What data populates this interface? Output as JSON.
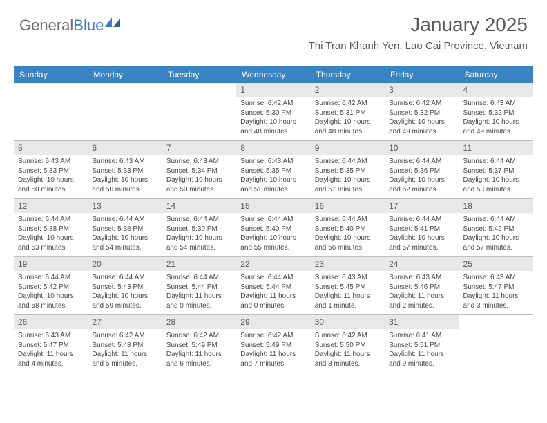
{
  "brand": {
    "part1": "General",
    "part2": "Blue"
  },
  "header": {
    "month": "January 2025",
    "location": "Thi Tran Khanh Yen, Lao Cai Province, Vietnam"
  },
  "colors": {
    "header_bg": "#3a84c4",
    "header_text": "#ffffff",
    "daynum_bg": "#e8e8e8",
    "text": "#4a4a4a",
    "rule": "#bfbfbf",
    "logo_gray": "#6b6b6b",
    "logo_blue": "#3a7fbf"
  },
  "dayNames": [
    "Sunday",
    "Monday",
    "Tuesday",
    "Wednesday",
    "Thursday",
    "Friday",
    "Saturday"
  ],
  "weeks": [
    [
      null,
      null,
      null,
      {
        "n": "1",
        "sr": "6:42 AM",
        "ss": "5:30 PM",
        "dl": "10 hours and 48 minutes."
      },
      {
        "n": "2",
        "sr": "6:42 AM",
        "ss": "5:31 PM",
        "dl": "10 hours and 48 minutes."
      },
      {
        "n": "3",
        "sr": "6:42 AM",
        "ss": "5:32 PM",
        "dl": "10 hours and 49 minutes."
      },
      {
        "n": "4",
        "sr": "6:43 AM",
        "ss": "5:32 PM",
        "dl": "10 hours and 49 minutes."
      }
    ],
    [
      {
        "n": "5",
        "sr": "6:43 AM",
        "ss": "5:33 PM",
        "dl": "10 hours and 50 minutes."
      },
      {
        "n": "6",
        "sr": "6:43 AM",
        "ss": "5:33 PM",
        "dl": "10 hours and 50 minutes."
      },
      {
        "n": "7",
        "sr": "6:43 AM",
        "ss": "5:34 PM",
        "dl": "10 hours and 50 minutes."
      },
      {
        "n": "8",
        "sr": "6:43 AM",
        "ss": "5:35 PM",
        "dl": "10 hours and 51 minutes."
      },
      {
        "n": "9",
        "sr": "6:44 AM",
        "ss": "5:35 PM",
        "dl": "10 hours and 51 minutes."
      },
      {
        "n": "10",
        "sr": "6:44 AM",
        "ss": "5:36 PM",
        "dl": "10 hours and 52 minutes."
      },
      {
        "n": "11",
        "sr": "6:44 AM",
        "ss": "5:37 PM",
        "dl": "10 hours and 53 minutes."
      }
    ],
    [
      {
        "n": "12",
        "sr": "6:44 AM",
        "ss": "5:38 PM",
        "dl": "10 hours and 53 minutes."
      },
      {
        "n": "13",
        "sr": "6:44 AM",
        "ss": "5:38 PM",
        "dl": "10 hours and 54 minutes."
      },
      {
        "n": "14",
        "sr": "6:44 AM",
        "ss": "5:39 PM",
        "dl": "10 hours and 54 minutes."
      },
      {
        "n": "15",
        "sr": "6:44 AM",
        "ss": "5:40 PM",
        "dl": "10 hours and 55 minutes."
      },
      {
        "n": "16",
        "sr": "6:44 AM",
        "ss": "5:40 PM",
        "dl": "10 hours and 56 minutes."
      },
      {
        "n": "17",
        "sr": "6:44 AM",
        "ss": "5:41 PM",
        "dl": "10 hours and 57 minutes."
      },
      {
        "n": "18",
        "sr": "6:44 AM",
        "ss": "5:42 PM",
        "dl": "10 hours and 57 minutes."
      }
    ],
    [
      {
        "n": "19",
        "sr": "6:44 AM",
        "ss": "5:42 PM",
        "dl": "10 hours and 58 minutes."
      },
      {
        "n": "20",
        "sr": "6:44 AM",
        "ss": "5:43 PM",
        "dl": "10 hours and 59 minutes."
      },
      {
        "n": "21",
        "sr": "6:44 AM",
        "ss": "5:44 PM",
        "dl": "11 hours and 0 minutes."
      },
      {
        "n": "22",
        "sr": "6:44 AM",
        "ss": "5:44 PM",
        "dl": "11 hours and 0 minutes."
      },
      {
        "n": "23",
        "sr": "6:43 AM",
        "ss": "5:45 PM",
        "dl": "11 hours and 1 minute."
      },
      {
        "n": "24",
        "sr": "6:43 AM",
        "ss": "5:46 PM",
        "dl": "11 hours and 2 minutes."
      },
      {
        "n": "25",
        "sr": "6:43 AM",
        "ss": "5:47 PM",
        "dl": "11 hours and 3 minutes."
      }
    ],
    [
      {
        "n": "26",
        "sr": "6:43 AM",
        "ss": "5:47 PM",
        "dl": "11 hours and 4 minutes."
      },
      {
        "n": "27",
        "sr": "6:42 AM",
        "ss": "5:48 PM",
        "dl": "11 hours and 5 minutes."
      },
      {
        "n": "28",
        "sr": "6:42 AM",
        "ss": "5:49 PM",
        "dl": "11 hours and 6 minutes."
      },
      {
        "n": "29",
        "sr": "6:42 AM",
        "ss": "5:49 PM",
        "dl": "11 hours and 7 minutes."
      },
      {
        "n": "30",
        "sr": "6:42 AM",
        "ss": "5:50 PM",
        "dl": "11 hours and 8 minutes."
      },
      {
        "n": "31",
        "sr": "6:41 AM",
        "ss": "5:51 PM",
        "dl": "11 hours and 9 minutes."
      },
      null
    ]
  ],
  "labels": {
    "sunrise": "Sunrise: ",
    "sunset": "Sunset: ",
    "daylight": "Daylight: "
  }
}
